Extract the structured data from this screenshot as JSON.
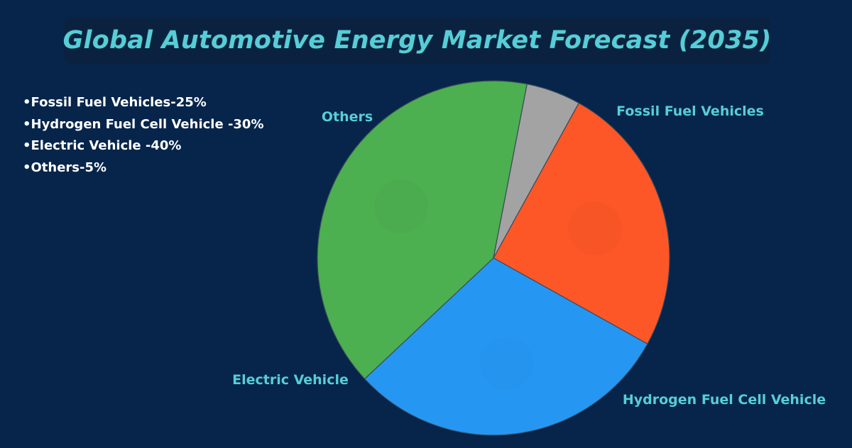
{
  "title": "Global Automotive Energy Market Forecast (2035)",
  "legend_items": [
    "•Fossil Fuel Vehicles-25%",
    "•Hydrogen Fuel Cell Vehicle -30%",
    "•Electric Vehicle -40%",
    "•Others-5%"
  ],
  "colors": {
    "background": "#07254a",
    "title_bg": "#0b2140",
    "title_text": "#57cdd7",
    "label_text": "#57cdd7",
    "legend_text": "#ffffff"
  },
  "chart_data": {
    "type": "pie",
    "title": "Global Automotive Energy Market Forecast (2035)",
    "slices": [
      {
        "label": "Fossil Fuel Vehicles",
        "value": 25,
        "color": "#fd5727"
      },
      {
        "label": "Hydrogen Fuel Cell Vehicle",
        "value": 30,
        "color": "#2597f3"
      },
      {
        "label": "Electric Vehicle",
        "value": 40,
        "color": "#4caf50"
      },
      {
        "label": "Others",
        "value": 5,
        "color": "#a3a3a3"
      }
    ],
    "start_angle_deg": -61,
    "direction": "clockwise"
  }
}
